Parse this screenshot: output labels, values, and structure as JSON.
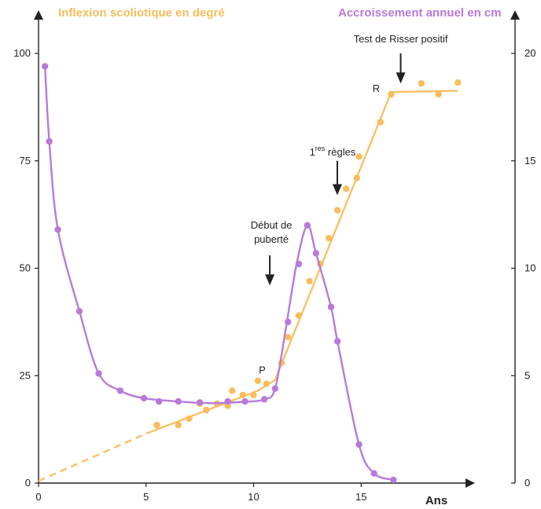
{
  "colors": {
    "orange": "#f8bd5c",
    "violet": "#b87ad9",
    "axis": "#222222",
    "text": "#222222"
  },
  "chart_data": {
    "type": "line",
    "x_axis": {
      "label": "Ans",
      "ticks": [
        0,
        5,
        10,
        15
      ],
      "range": [
        0,
        20
      ]
    },
    "y_left": {
      "title": "Inflexion scoliotique en degré",
      "ticks": [
        0,
        25,
        50,
        75,
        100
      ],
      "range": [
        0,
        100
      ]
    },
    "y_right": {
      "title": "Accroissement annuel en cm",
      "ticks": [
        0,
        5,
        10,
        15,
        20
      ],
      "range": [
        0,
        20
      ]
    },
    "series": [
      {
        "name": "Inflexion scoliotique en degré",
        "axis": "left",
        "color": "#f8bd5c",
        "fit_dashed": [
          [
            0,
            0.5
          ],
          [
            5,
            11.5
          ]
        ],
        "fit_line": [
          [
            5,
            11.5
          ],
          [
            10.2,
            21.5
          ],
          [
            11,
            24
          ],
          [
            16.4,
            91
          ],
          [
            19.5,
            91.3
          ]
        ],
        "points": [
          [
            5.5,
            13.5
          ],
          [
            6.5,
            13.5
          ],
          [
            7,
            15
          ],
          [
            7.5,
            18.5
          ],
          [
            7.8,
            17
          ],
          [
            8.3,
            18.5
          ],
          [
            8.8,
            18
          ],
          [
            9,
            21.5
          ],
          [
            9.5,
            20.5
          ],
          [
            10,
            20.5
          ],
          [
            10.2,
            23.8
          ],
          [
            10.6,
            23.1
          ],
          [
            11.3,
            28
          ],
          [
            11.6,
            34
          ],
          [
            12.1,
            39
          ],
          [
            12.6,
            47
          ],
          [
            13.1,
            51
          ],
          [
            13.5,
            57
          ],
          [
            13.9,
            63.5
          ],
          [
            14.3,
            68.5
          ],
          [
            14.8,
            71
          ],
          [
            14.9,
            76
          ],
          [
            15.9,
            84
          ],
          [
            16.4,
            90.5
          ],
          [
            17.8,
            93
          ],
          [
            18.6,
            90.5
          ],
          [
            19.5,
            93.2
          ]
        ]
      },
      {
        "name": "Accroissement annuel en cm",
        "axis": "right",
        "color": "#b87ad9",
        "points": [
          [
            0.3,
            19.4
          ],
          [
            0.5,
            15.9
          ],
          [
            0.9,
            11.8
          ],
          [
            1.9,
            8.0
          ],
          [
            2.8,
            5.1
          ],
          [
            3.8,
            4.3
          ],
          [
            4.9,
            3.95
          ],
          [
            5.6,
            3.8
          ],
          [
            6.5,
            3.8
          ],
          [
            7.5,
            3.75
          ],
          [
            8.8,
            3.8
          ],
          [
            9.6,
            3.8
          ],
          [
            10.5,
            3.9
          ],
          [
            11,
            4.4
          ],
          [
            11.6,
            7.5
          ],
          [
            12.1,
            10.2
          ],
          [
            12.5,
            12.0
          ],
          [
            12.9,
            10.7
          ],
          [
            13.6,
            8.2
          ],
          [
            13.9,
            6.6
          ],
          [
            14.9,
            1.8
          ],
          [
            15.6,
            0.45
          ],
          [
            16.5,
            0.15
          ]
        ],
        "curve": [
          [
            0.3,
            19.4
          ],
          [
            0.5,
            15.9
          ],
          [
            0.9,
            11.8
          ],
          [
            1.9,
            8.0
          ],
          [
            2.8,
            5.1
          ],
          [
            3.8,
            4.3
          ],
          [
            4.9,
            3.95
          ],
          [
            6.5,
            3.8
          ],
          [
            8.0,
            3.72
          ],
          [
            9.5,
            3.78
          ],
          [
            10.5,
            3.9
          ],
          [
            11.0,
            4.4
          ],
          [
            11.5,
            7.2
          ],
          [
            12.0,
            10.2
          ],
          [
            12.5,
            12.0
          ],
          [
            12.9,
            10.7
          ],
          [
            13.6,
            8.2
          ],
          [
            13.9,
            6.6
          ],
          [
            14.9,
            1.8
          ],
          [
            15.6,
            0.45
          ],
          [
            16.5,
            0.15
          ]
        ]
      }
    ],
    "annotations": [
      {
        "id": "debut",
        "lines": [
          "Début de",
          "puberté"
        ],
        "x": 10.9,
        "y_left": 46,
        "arrow_from_y": 53
      },
      {
        "id": "regles",
        "base": "1",
        "sup": "res",
        "text": " règles",
        "x": 13.6,
        "y_left": 67,
        "arrow_from_y": 75
      },
      {
        "id": "risser",
        "text": "Test de Risser positif",
        "x": 16.4,
        "y_left": 92,
        "arrow_from_y": 100
      },
      {
        "id": "p",
        "text": "P",
        "x": 10.4,
        "y_left": 25.5
      },
      {
        "id": "r",
        "text": "R",
        "x": 15.7,
        "y_left": 91
      }
    ]
  }
}
